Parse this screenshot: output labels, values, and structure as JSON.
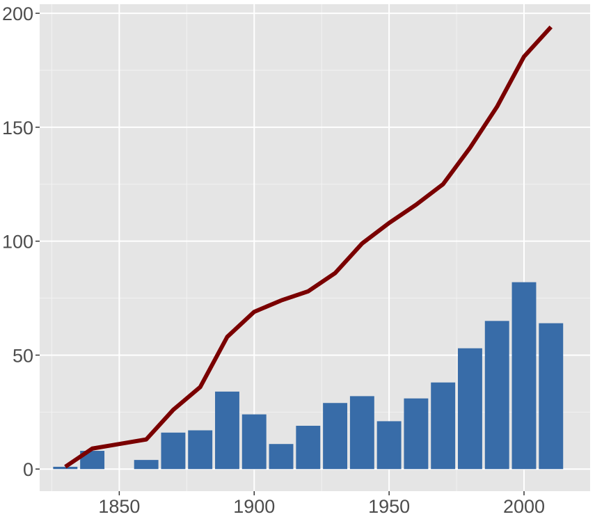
{
  "chart_data": {
    "type": "bar",
    "title": "",
    "xlabel": "",
    "ylabel": "",
    "xlim": [
      1820.5,
      2024.5
    ],
    "ylim": [
      -9.7,
      204
    ],
    "x_ticks": [
      1850,
      1900,
      1950,
      2000
    ],
    "y_ticks": [
      0,
      50,
      100,
      150,
      200
    ],
    "x_tick_labels": [
      "1850",
      "1900",
      "1950",
      "2000"
    ],
    "y_tick_labels": [
      "0",
      "50",
      "100",
      "150",
      "200"
    ],
    "grid": true,
    "legend": "none",
    "series": [
      {
        "type": "bar",
        "color": "#386CA8",
        "x": [
          1830,
          1840,
          1850,
          1860,
          1870,
          1880,
          1890,
          1900,
          1910,
          1920,
          1930,
          1940,
          1950,
          1960,
          1970,
          1980,
          1990,
          2000,
          2010
        ],
        "values": [
          1,
          8,
          0,
          4,
          16,
          17,
          34,
          24,
          11,
          19,
          29,
          32,
          21,
          31,
          38,
          53,
          65,
          82,
          64
        ]
      },
      {
        "type": "line",
        "color": "#7A0000",
        "x": [
          1830,
          1840,
          1850,
          1860,
          1870,
          1880,
          1890,
          1900,
          1910,
          1920,
          1930,
          1940,
          1950,
          1960,
          1970,
          1980,
          1990,
          2000,
          2010
        ],
        "values": [
          1,
          9,
          11,
          13,
          26,
          36,
          58,
          69,
          74,
          78,
          86,
          99,
          108,
          116,
          125,
          141,
          159,
          181,
          194
        ]
      }
    ]
  }
}
